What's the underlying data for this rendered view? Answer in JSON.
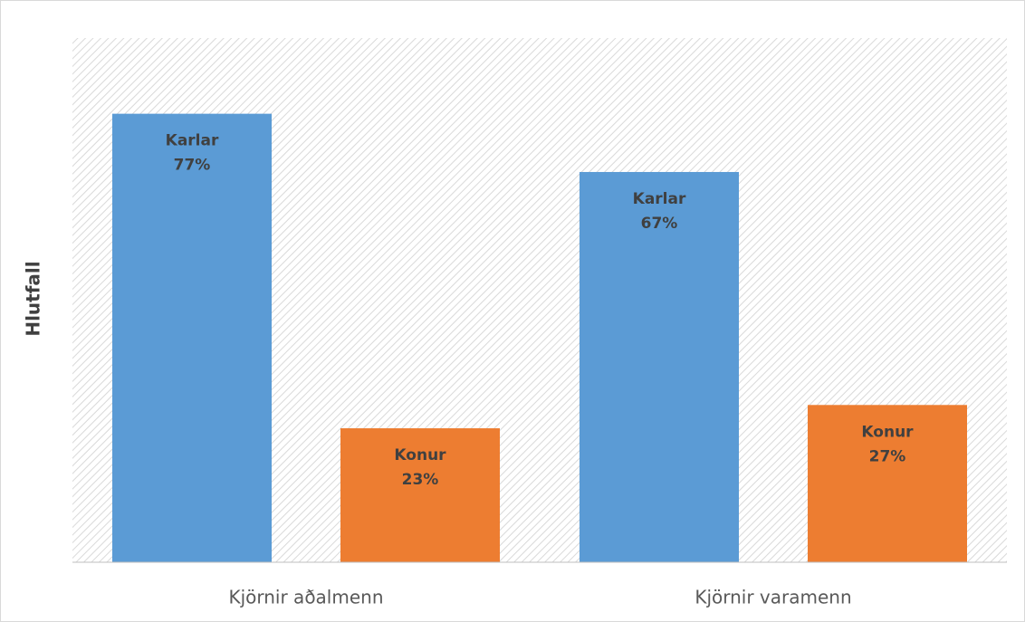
{
  "chart_data": {
    "type": "bar",
    "y_label": "Hlutfall",
    "categories": [
      "Kjörnir aðalmenn",
      "Kjörnir varamenn"
    ],
    "series": [
      {
        "name": "Karlar",
        "color": "#5b9bd5",
        "values": [
          77,
          67
        ],
        "value_labels": [
          "77%",
          "67%"
        ]
      },
      {
        "name": "Konur",
        "color": "#ed7d31",
        "values": [
          23,
          27
        ],
        "value_labels": [
          "23%",
          "27%"
        ]
      }
    ],
    "ylim": [
      0,
      90
    ]
  }
}
